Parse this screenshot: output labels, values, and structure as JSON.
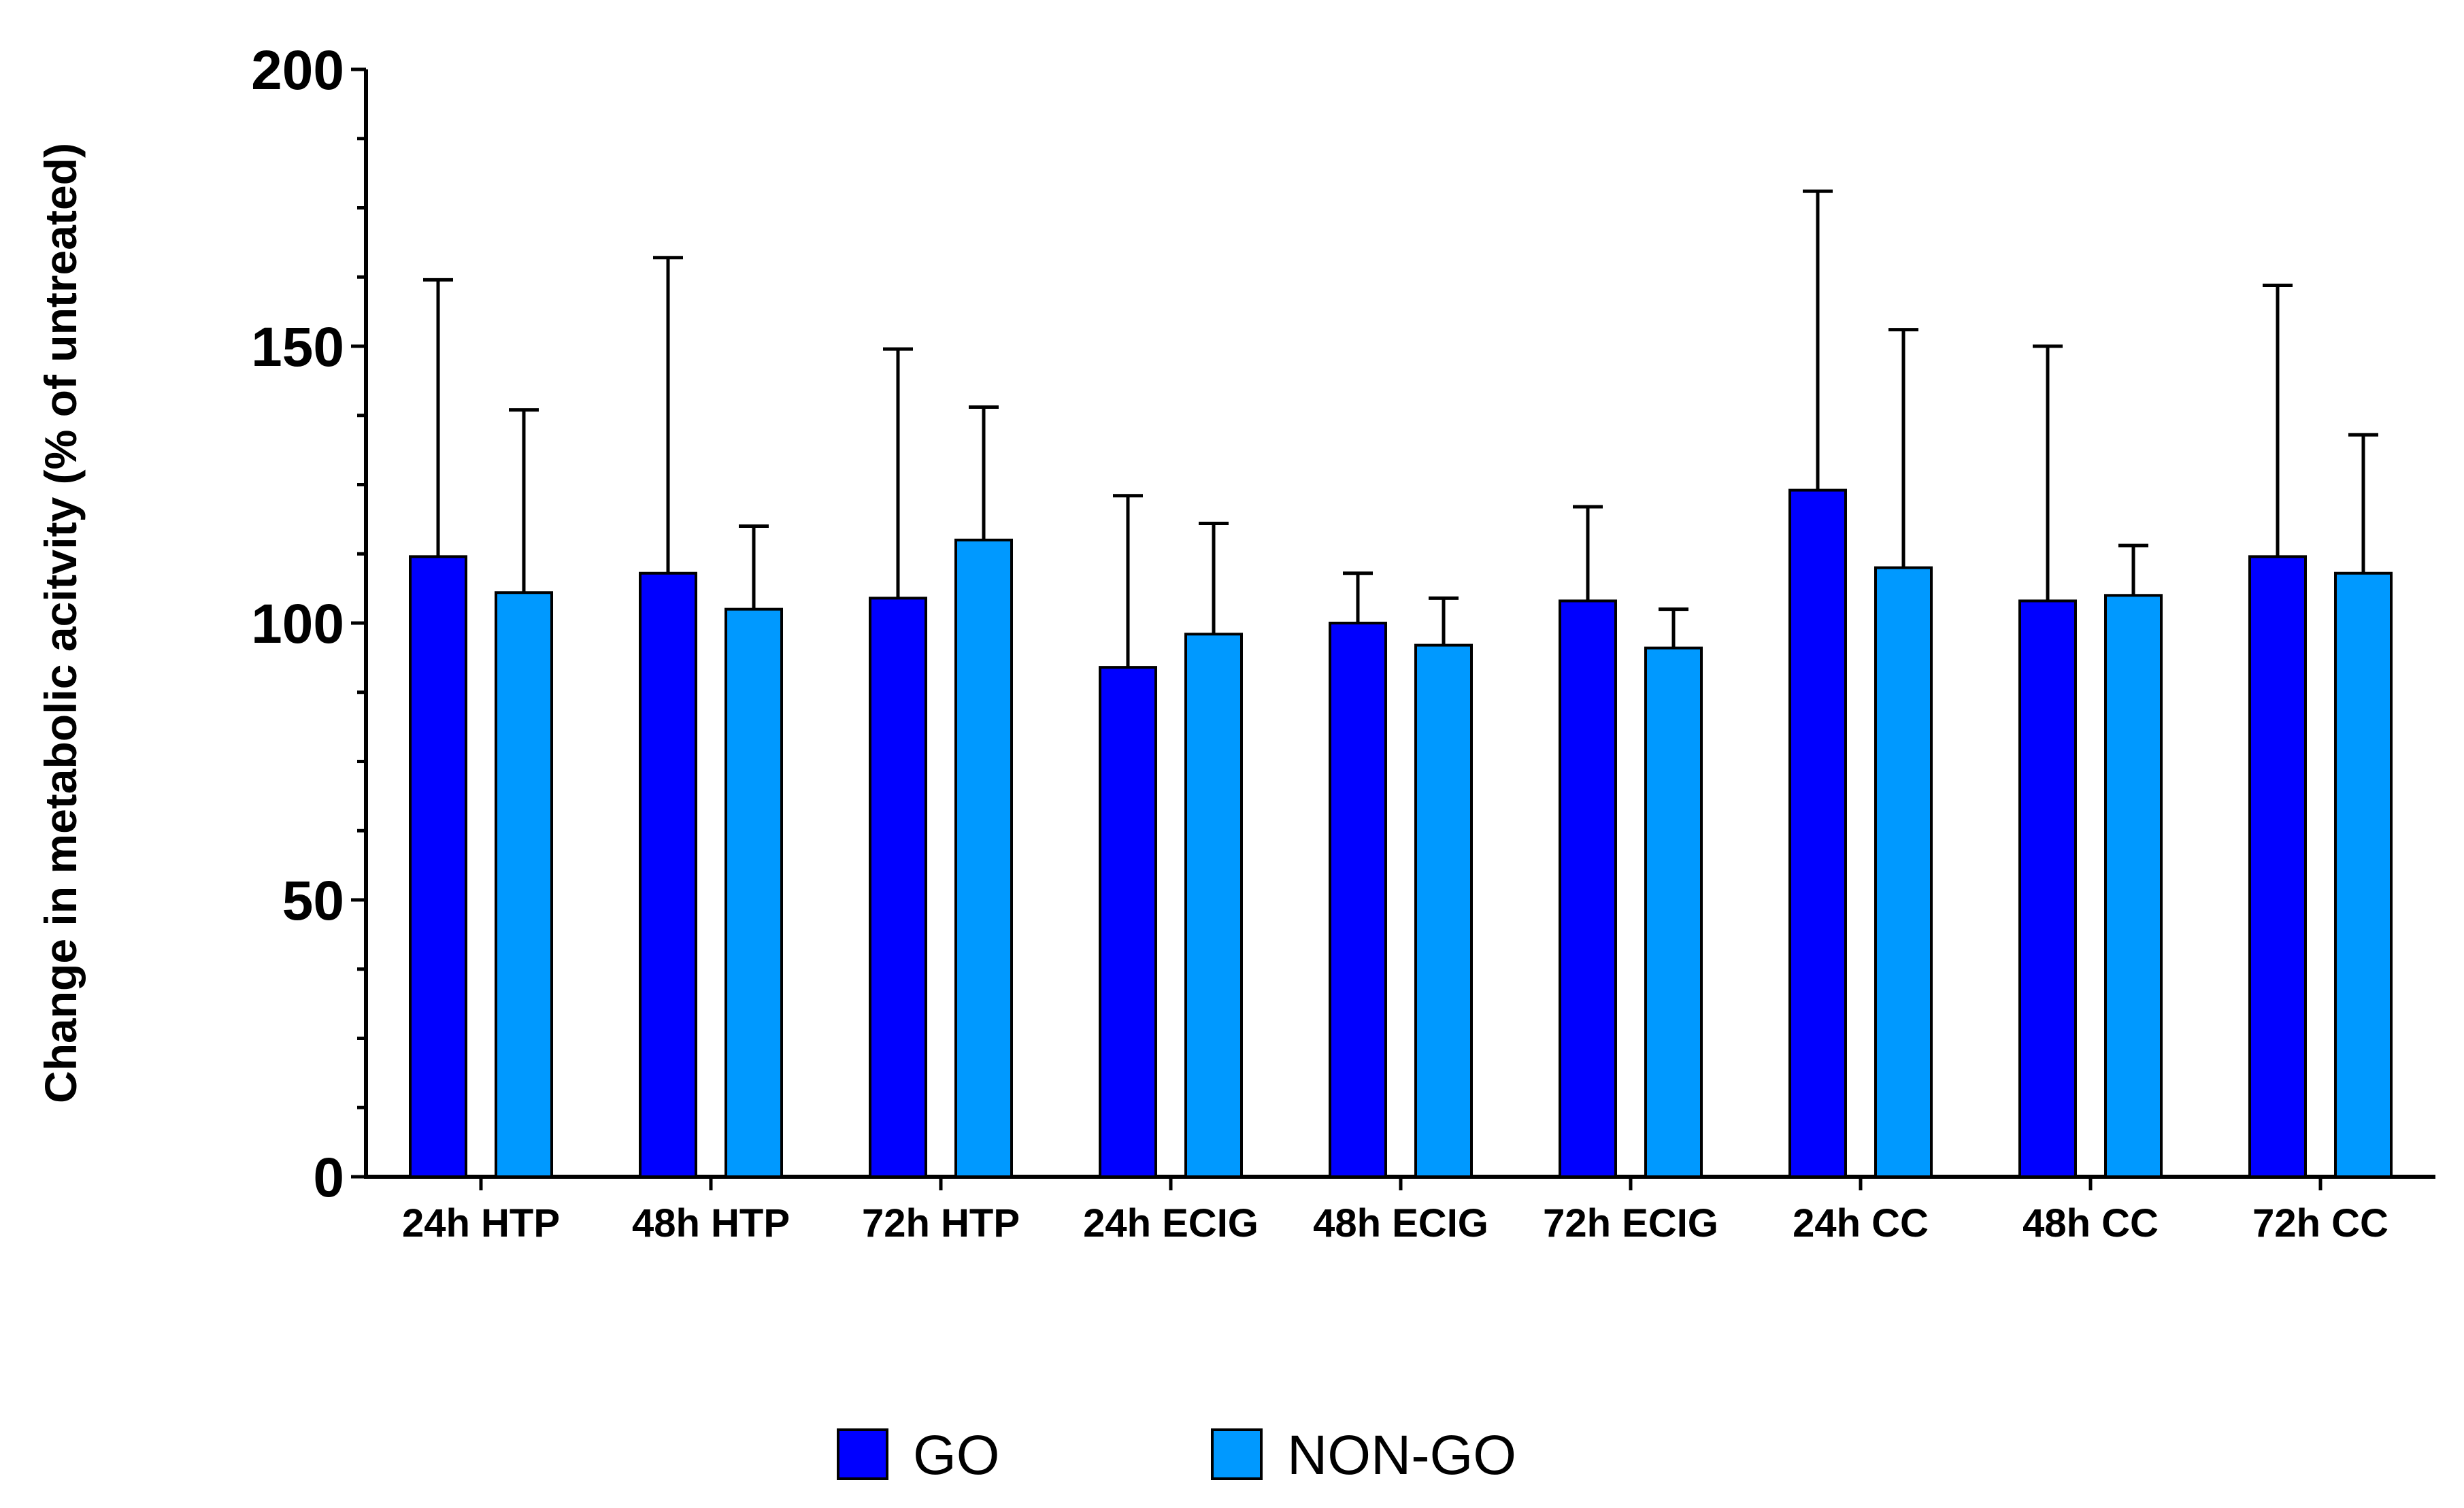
{
  "chart_data": {
    "type": "bar",
    "title": "",
    "xlabel": "",
    "ylabel": "Change in metabolic acitvity (% of untreated)",
    "ylim": [
      0,
      200
    ],
    "yticks": [
      "0",
      "50",
      "100",
      "150",
      "200"
    ],
    "categories": [
      "24h HTP",
      "48h HTP",
      "72h HTP",
      "24h ECIG",
      "48h ECIG",
      "72h ECIG",
      "24h CC",
      "48h CC",
      "72h CC"
    ],
    "series": [
      {
        "name": "GO",
        "color": "#0000FF",
        "values": [
          112,
          109,
          104.5,
          92,
          100,
          104,
          124,
          104,
          112
        ],
        "error_upper": [
          50,
          57,
          45,
          31,
          9,
          17,
          54,
          46,
          49
        ]
      },
      {
        "name": "NON-GO",
        "color": "#0099FF",
        "values": [
          105.5,
          102.5,
          115,
          98,
          96,
          95.5,
          110,
          105,
          109
        ],
        "error_upper": [
          33,
          15,
          24,
          20,
          8.5,
          7,
          43,
          9,
          25
        ]
      }
    ],
    "legend": {
      "position": "bottom-center"
    }
  }
}
